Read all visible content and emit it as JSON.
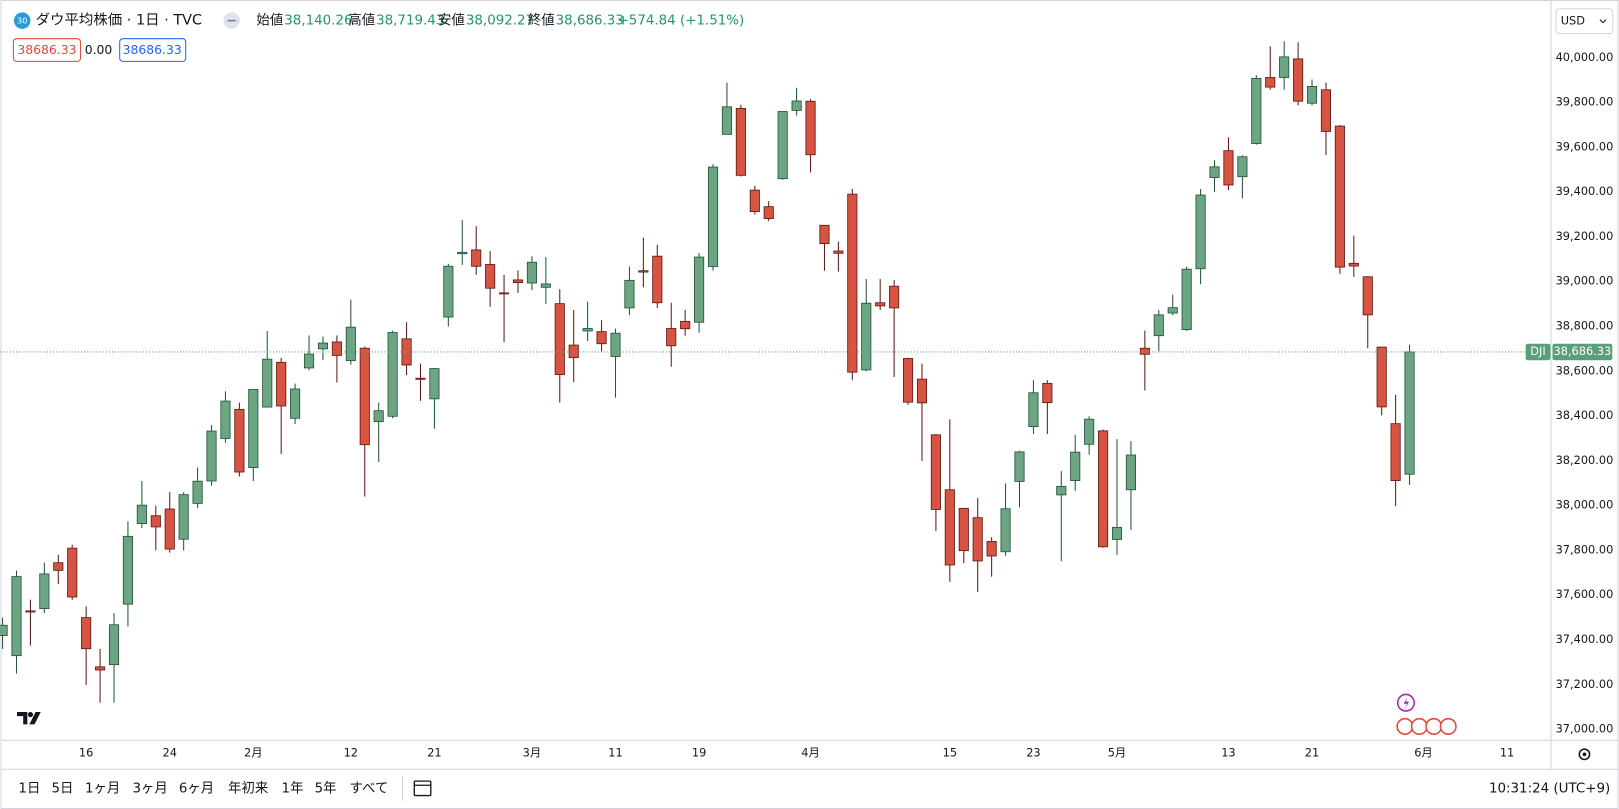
{
  "header": {
    "icon": "30",
    "symbol": "ダウ平均株価 · 1日 · TVC",
    "ohlc": [
      {
        "label": "始値",
        "value": "38,140.26"
      },
      {
        "label": "高値",
        "value": "38,719.43"
      },
      {
        "label": "安値",
        "value": "38,092.27"
      },
      {
        "label": "終値",
        "value": "38,686.33"
      }
    ],
    "change": "+574.84 (+1.51%)",
    "inputs": [
      "38686.33",
      "0.00",
      "38686.33"
    ],
    "currency": "USD"
  },
  "toolbar": {
    "ranges": [
      "1日",
      "5日",
      "1ヶ月",
      "3ヶ月",
      "6ヶ月",
      "年初来",
      "1年",
      "5年",
      "すべて"
    ],
    "time": "10:31:24 (UTC+9)"
  },
  "chart_data": {
    "type": "candlestick",
    "categories": [
      null,
      null,
      null,
      null,
      null,
      null,
      "16",
      null,
      null,
      null,
      null,
      null,
      "24",
      null,
      null,
      null,
      null,
      null,
      "2月",
      null,
      null,
      null,
      null,
      null,
      null,
      "12",
      null,
      null,
      null,
      null,
      null,
      "21",
      null,
      null,
      null,
      null,
      null,
      null,
      "3月",
      null,
      null,
      null,
      null,
      null,
      "11",
      null,
      null,
      null,
      null,
      null,
      "19",
      null,
      null,
      null,
      null,
      null,
      null,
      null,
      "4月",
      null,
      null,
      null,
      null,
      null,
      null,
      null,
      null,
      null,
      "15",
      null,
      null,
      null,
      null,
      null,
      "23",
      null,
      null,
      null,
      null,
      null,
      "5月",
      null,
      null,
      null,
      null,
      null,
      null,
      null,
      "13",
      null,
      null,
      null,
      null,
      null,
      "21",
      null,
      null,
      null,
      null,
      null,
      null,
      null,
      "6月",
      null,
      null,
      null,
      null,
      null,
      "11"
    ],
    "open": [
      37420,
      37330,
      37530,
      37540,
      37745,
      37810,
      37500,
      37280,
      37290,
      37560,
      37920,
      37955,
      37985,
      37850,
      38010,
      38110,
      38300,
      38430,
      38170,
      38440,
      38640,
      38390,
      38615,
      38700,
      38731,
      38648,
      38703,
      38375,
      38399,
      38745,
      38569,
      38477,
      38842,
      39125,
      39142,
      39077,
      38950,
      39008,
      38994,
      38975,
      38902,
      38717,
      38780,
      38777,
      38666,
      38883,
      39049,
      39114,
      38791,
      38823,
      38819,
      39068,
      39658,
      39774,
      39409,
      39335,
      39460,
      39765,
      39806,
      39252,
      39137,
      39391,
      38606,
      38906,
      38980,
      38657,
      38565,
      38316,
      38071,
      37988,
      37946,
      37840,
      37794,
      38108,
      38353,
      38546,
      38048,
      38112,
      38274,
      38334,
      37849,
      38071,
      38703,
      38759,
      38860,
      38786,
      39058,
      39465,
      39585,
      39469,
      39617,
      39912,
      39912,
      39995,
      39797,
      39857,
      39695,
      39082,
      39022,
      38708,
      38366,
      38140.26,
      null,
      null,
      null,
      null,
      null,
      null,
      null
    ],
    "high": [
      37500,
      37710,
      37580,
      37745,
      37780,
      37825,
      37550,
      37360,
      37520,
      37930,
      38110,
      38000,
      38060,
      38060,
      38170,
      38360,
      38510,
      38460,
      38520,
      38780,
      38660,
      38545,
      38760,
      38755,
      38760,
      38920,
      38710,
      38460,
      38781,
      38819,
      38634,
      38615,
      39080,
      39275,
      39248,
      39137,
      39030,
      39050,
      39114,
      39110,
      38967,
      38874,
      38911,
      38828,
      38791,
      39068,
      39197,
      39165,
      38906,
      38874,
      39128,
      39525,
      39889,
      39790,
      39428,
      39360,
      39760,
      39866,
      39815,
      39252,
      39179,
      39414,
      39012,
      39012,
      39008,
      38660,
      38634,
      38320,
      38385,
      37990,
      38034,
      37859,
      38099,
      38245,
      38560,
      38560,
      38154,
      38316,
      38399,
      38340,
      38297,
      38288,
      38782,
      38874,
      38943,
      39068,
      39414,
      39543,
      39645,
      39565,
      39922,
      40051,
      40074,
      40069,
      39903,
      39889,
      39700,
      39206,
      39025,
      38710,
      38495,
      38719.43,
      null,
      null,
      null,
      null,
      null,
      null,
      null
    ],
    "low": [
      37360,
      37250,
      37375,
      37520,
      37650,
      37580,
      37200,
      37120,
      37120,
      37460,
      37900,
      37800,
      37790,
      37800,
      37990,
      38090,
      38280,
      38130,
      38110,
      38440,
      38230,
      38365,
      38605,
      38650,
      38550,
      38630,
      38040,
      38195,
      38390,
      38583,
      38468,
      38343,
      38800,
      39075,
      39031,
      38888,
      38730,
      38950,
      38962,
      38900,
      38460,
      38551,
      38735,
      38689,
      38482,
      38851,
      38975,
      38883,
      38620,
      38759,
      38772,
      39050,
      39658,
      39470,
      39300,
      39270,
      39455,
      39742,
      39488,
      39049,
      39045,
      38560,
      38600,
      38874,
      38574,
      38450,
      38200,
      37886,
      37660,
      37743,
      37614,
      37683,
      37776,
      37993,
      38320,
      38320,
      37752,
      38066,
      38228,
      37812,
      37780,
      37891,
      38514,
      38689,
      38850,
      38780,
      38989,
      39400,
      39409,
      39372,
      39612,
      39857,
      39857,
      39788,
      39788,
      39566,
      39035,
      39022,
      38703,
      38403,
      37997,
      38092.27,
      null,
      null,
      null,
      null,
      null,
      null,
      null
    ],
    "close": [
      37466,
      37683,
      37525,
      37695,
      37711,
      37592,
      37361,
      37266,
      37468,
      37863,
      38002,
      37905,
      37806,
      38049,
      38109,
      38333,
      38467,
      38150,
      38519,
      38654,
      38445,
      38521,
      38677,
      38726,
      38671,
      38797,
      38272,
      38424,
      38773,
      38628,
      38564,
      38612,
      39069,
      39131,
      39069,
      38971,
      38949,
      38996,
      39087,
      38990,
      38585,
      38661,
      38791,
      38723,
      38770,
      39006,
      39043,
      38906,
      38714,
      38790,
      39110,
      39512,
      39781,
      39475,
      39313,
      39282,
      39760,
      39807,
      39567,
      39170,
      39127,
      38596,
      38904,
      38892,
      38883,
      38462,
      38459,
      37983,
      37735,
      37799,
      37753,
      37775,
      37986,
      38240,
      38504,
      38460,
      38086,
      38239,
      38386,
      37816,
      37903,
      38226,
      38676,
      38852,
      38884,
      39056,
      39387,
      39513,
      39432,
      39558,
      39908,
      39869,
      40004,
      39806,
      39872,
      39671,
      39065,
      39070,
      38852,
      38441,
      38112,
      38686.33,
      null,
      null,
      null,
      null,
      null,
      null,
      null
    ],
    "up_color": "#6ba583",
    "up_border": "#225437",
    "down_color": "#d75442",
    "down_border": "#5b1a13",
    "ylim": [
      36954,
      40258
    ],
    "yticks": [
      {
        "value": 37000,
        "label": "37,000.00"
      },
      {
        "value": 37200,
        "label": "37,200.00"
      },
      {
        "value": 37400,
        "label": "37,400.00"
      },
      {
        "value": 37600,
        "label": "37,600.00"
      },
      {
        "value": 37800,
        "label": "37,800.00"
      },
      {
        "value": 38000,
        "label": "38,000.00"
      },
      {
        "value": 38200,
        "label": "38,200.00"
      },
      {
        "value": 38400,
        "label": "38,400.00"
      },
      {
        "value": 38600,
        "label": "38,600.00"
      },
      {
        "value": 38800,
        "label": "38,800.00"
      },
      {
        "value": 39000,
        "label": "39,000.00"
      },
      {
        "value": 39200,
        "label": "39,200.00"
      },
      {
        "value": 39400,
        "label": "39,400.00"
      },
      {
        "value": 39600,
        "label": "39,600.00"
      },
      {
        "value": 39800,
        "label": "39,800.00"
      },
      {
        "value": 40000,
        "label": "40,000.00"
      }
    ],
    "grid": false,
    "last_price": {
      "symbol": "DJI",
      "label": "38,686.33",
      "color": "#5a9e7a"
    }
  }
}
